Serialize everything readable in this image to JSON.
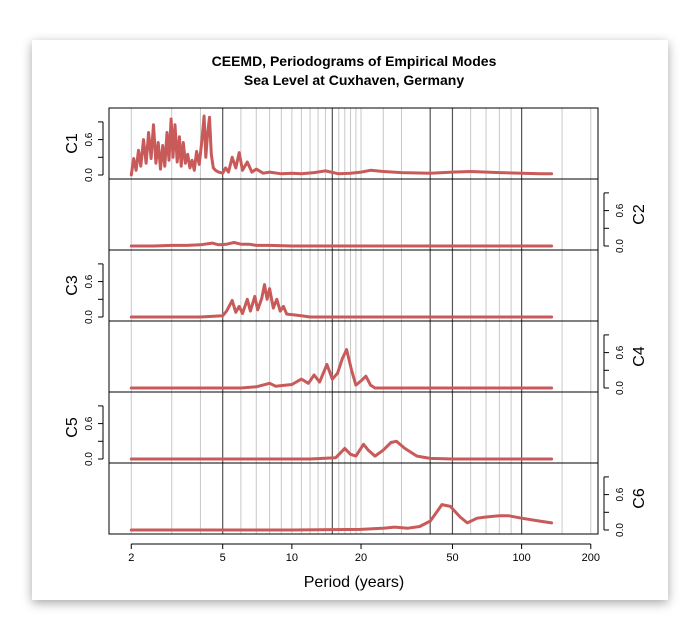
{
  "chart_data": {
    "type": "line",
    "title": "CEEMD, Periodograms of Empirical Modes",
    "subtitle": "Sea Level at Cuxhaven, Germany",
    "xlabel": "Period (years)",
    "xscale": "log",
    "xlim": [
      1.6,
      215
    ],
    "x_ticks": [
      "2",
      "5",
      "10",
      "20",
      "50",
      "100",
      "200"
    ],
    "y_ticks": [
      "0.0",
      "0.6"
    ],
    "ylim": [
      0,
      1.0
    ],
    "line_color": "#c85a5a",
    "grid_periods": [
      2,
      3,
      4,
      5,
      6,
      7,
      8,
      9,
      10,
      11,
      12,
      13,
      14,
      15,
      16,
      17,
      18,
      19,
      20,
      25,
      30,
      40,
      50,
      60,
      70,
      80,
      90,
      100,
      150,
      200
    ],
    "major_grid_periods": [
      5,
      15,
      40,
      50,
      100
    ],
    "series": [
      {
        "name": "C1",
        "axis_side": "left",
        "points": [
          [
            2.0,
            0.0
          ],
          [
            2.05,
            0.28
          ],
          [
            2.1,
            0.08
          ],
          [
            2.15,
            0.42
          ],
          [
            2.2,
            0.15
          ],
          [
            2.26,
            0.6
          ],
          [
            2.32,
            0.2
          ],
          [
            2.38,
            0.72
          ],
          [
            2.44,
            0.28
          ],
          [
            2.5,
            0.85
          ],
          [
            2.56,
            0.2
          ],
          [
            2.62,
            0.55
          ],
          [
            2.68,
            0.1
          ],
          [
            2.74,
            0.5
          ],
          [
            2.8,
            0.15
          ],
          [
            2.86,
            0.72
          ],
          [
            2.92,
            0.25
          ],
          [
            2.98,
            0.95
          ],
          [
            3.04,
            0.3
          ],
          [
            3.1,
            0.85
          ],
          [
            3.17,
            0.22
          ],
          [
            3.24,
            0.65
          ],
          [
            3.3,
            0.15
          ],
          [
            3.37,
            0.55
          ],
          [
            3.44,
            0.2
          ],
          [
            3.52,
            0.35
          ],
          [
            3.6,
            0.12
          ],
          [
            3.68,
            0.25
          ],
          [
            3.76,
            0.08
          ],
          [
            3.85,
            0.4
          ],
          [
            3.95,
            0.18
          ],
          [
            4.05,
            0.55
          ],
          [
            4.15,
            1.0
          ],
          [
            4.22,
            0.3
          ],
          [
            4.3,
            0.7
          ],
          [
            4.38,
            0.98
          ],
          [
            4.46,
            0.35
          ],
          [
            4.55,
            0.12
          ],
          [
            4.65,
            0.08
          ],
          [
            4.8,
            0.05
          ],
          [
            5.0,
            0.03
          ],
          [
            5.15,
            0.12
          ],
          [
            5.3,
            0.05
          ],
          [
            5.5,
            0.3
          ],
          [
            5.7,
            0.12
          ],
          [
            5.9,
            0.38
          ],
          [
            6.1,
            0.08
          ],
          [
            6.4,
            0.22
          ],
          [
            6.7,
            0.05
          ],
          [
            7.0,
            0.1
          ],
          [
            7.5,
            0.03
          ],
          [
            8.0,
            0.05
          ],
          [
            9.0,
            0.02
          ],
          [
            10.0,
            0.03
          ],
          [
            11.0,
            0.02
          ],
          [
            12.5,
            0.04
          ],
          [
            14.0,
            0.07
          ],
          [
            16.0,
            0.02
          ],
          [
            18.0,
            0.03
          ],
          [
            20.0,
            0.05
          ],
          [
            22.0,
            0.08
          ],
          [
            25.0,
            0.06
          ],
          [
            30.0,
            0.04
          ],
          [
            40.0,
            0.03
          ],
          [
            50.0,
            0.05
          ],
          [
            60.0,
            0.06
          ],
          [
            80.0,
            0.04
          ],
          [
            100.0,
            0.03
          ],
          [
            120.0,
            0.02
          ],
          [
            135.0,
            0.02
          ]
        ]
      },
      {
        "name": "C2",
        "axis_side": "right",
        "points": [
          [
            2.0,
            0.0
          ],
          [
            2.5,
            0.0
          ],
          [
            3.0,
            0.01
          ],
          [
            3.5,
            0.01
          ],
          [
            4.0,
            0.02
          ],
          [
            4.5,
            0.05
          ],
          [
            4.8,
            0.02
          ],
          [
            5.2,
            0.03
          ],
          [
            5.6,
            0.06
          ],
          [
            6.0,
            0.03
          ],
          [
            6.5,
            0.03
          ],
          [
            7.0,
            0.01
          ],
          [
            8.0,
            0.01
          ],
          [
            10.0,
            0.0
          ],
          [
            20.0,
            0.0
          ],
          [
            50.0,
            0.0
          ],
          [
            100.0,
            0.0
          ],
          [
            135.0,
            0.0
          ]
        ]
      },
      {
        "name": "C3",
        "axis_side": "left",
        "points": [
          [
            2.0,
            0.0
          ],
          [
            4.0,
            0.0
          ],
          [
            5.0,
            0.02
          ],
          [
            5.2,
            0.1
          ],
          [
            5.5,
            0.28
          ],
          [
            5.7,
            0.08
          ],
          [
            5.9,
            0.18
          ],
          [
            6.1,
            0.06
          ],
          [
            6.4,
            0.3
          ],
          [
            6.6,
            0.1
          ],
          [
            6.9,
            0.35
          ],
          [
            7.1,
            0.12
          ],
          [
            7.4,
            0.32
          ],
          [
            7.6,
            0.55
          ],
          [
            7.8,
            0.3
          ],
          [
            8.0,
            0.48
          ],
          [
            8.3,
            0.15
          ],
          [
            8.6,
            0.3
          ],
          [
            8.9,
            0.1
          ],
          [
            9.2,
            0.18
          ],
          [
            9.5,
            0.05
          ],
          [
            10.0,
            0.04
          ],
          [
            11.0,
            0.02
          ],
          [
            12.0,
            0.0
          ],
          [
            20.0,
            0.0
          ],
          [
            50.0,
            0.0
          ],
          [
            100.0,
            0.0
          ],
          [
            135.0,
            0.0
          ]
        ]
      },
      {
        "name": "C4",
        "axis_side": "right",
        "points": [
          [
            2.0,
            0.0
          ],
          [
            6.0,
            0.0
          ],
          [
            7.0,
            0.02
          ],
          [
            8.0,
            0.08
          ],
          [
            8.5,
            0.03
          ],
          [
            9.0,
            0.04
          ],
          [
            10.0,
            0.06
          ],
          [
            11.0,
            0.15
          ],
          [
            11.8,
            0.08
          ],
          [
            12.5,
            0.22
          ],
          [
            13.2,
            0.1
          ],
          [
            14.2,
            0.4
          ],
          [
            15.0,
            0.15
          ],
          [
            15.8,
            0.25
          ],
          [
            16.6,
            0.5
          ],
          [
            17.3,
            0.65
          ],
          [
            18.2,
            0.3
          ],
          [
            19.0,
            0.05
          ],
          [
            20.0,
            0.12
          ],
          [
            21.0,
            0.2
          ],
          [
            22.0,
            0.05
          ],
          [
            23.0,
            0.0
          ],
          [
            50.0,
            0.0
          ],
          [
            100.0,
            0.0
          ],
          [
            135.0,
            0.0
          ]
        ]
      },
      {
        "name": "C5",
        "axis_side": "left",
        "points": [
          [
            2.0,
            0.0
          ],
          [
            12.0,
            0.0
          ],
          [
            15.5,
            0.02
          ],
          [
            17.0,
            0.18
          ],
          [
            18.0,
            0.08
          ],
          [
            19.0,
            0.05
          ],
          [
            20.5,
            0.25
          ],
          [
            21.5,
            0.15
          ],
          [
            23.0,
            0.05
          ],
          [
            25.0,
            0.15
          ],
          [
            27.0,
            0.28
          ],
          [
            28.5,
            0.3
          ],
          [
            31.0,
            0.18
          ],
          [
            35.0,
            0.05
          ],
          [
            40.0,
            0.01
          ],
          [
            50.0,
            0.0
          ],
          [
            100.0,
            0.0
          ],
          [
            135.0,
            0.0
          ]
        ]
      },
      {
        "name": "C6",
        "axis_side": "right",
        "points": [
          [
            2.0,
            0.0
          ],
          [
            10.0,
            0.0
          ],
          [
            20.0,
            0.01
          ],
          [
            25.0,
            0.03
          ],
          [
            28.0,
            0.05
          ],
          [
            32.0,
            0.03
          ],
          [
            36.0,
            0.06
          ],
          [
            40.0,
            0.15
          ],
          [
            43.0,
            0.32
          ],
          [
            45.0,
            0.43
          ],
          [
            49.0,
            0.4
          ],
          [
            54.0,
            0.22
          ],
          [
            58.0,
            0.12
          ],
          [
            64.0,
            0.2
          ],
          [
            70.0,
            0.22
          ],
          [
            80.0,
            0.24
          ],
          [
            88.0,
            0.24
          ],
          [
            100.0,
            0.2
          ],
          [
            120.0,
            0.15
          ],
          [
            135.0,
            0.12
          ]
        ]
      }
    ]
  }
}
